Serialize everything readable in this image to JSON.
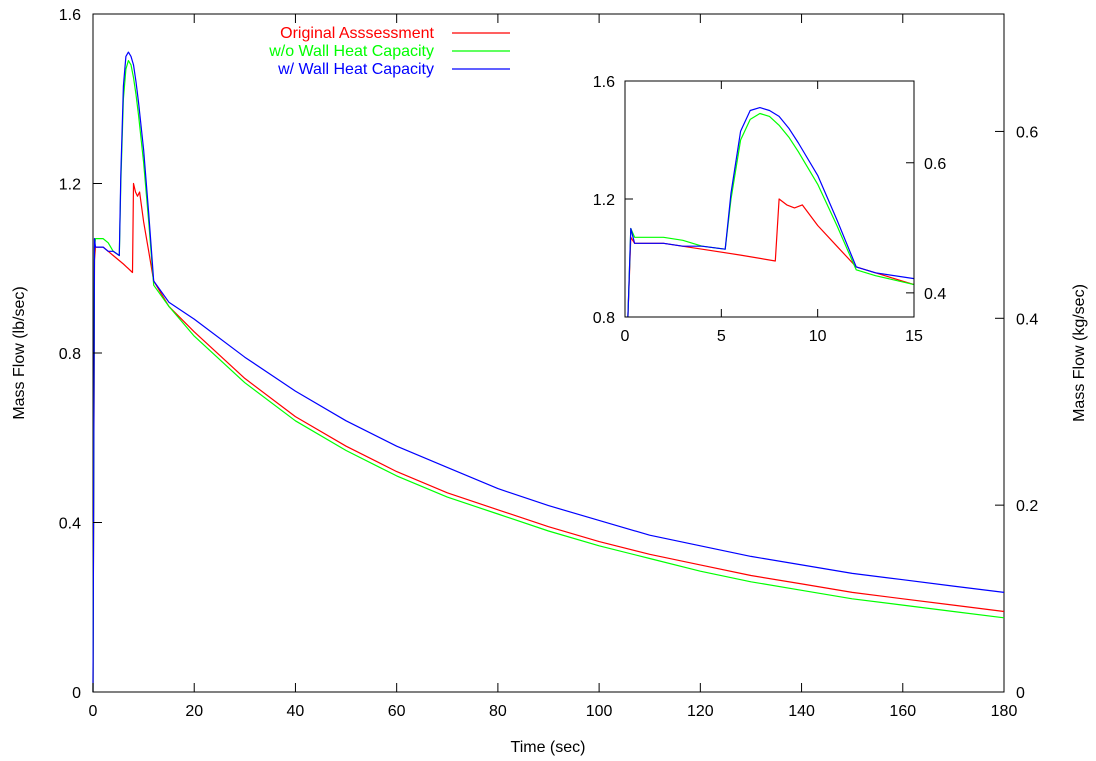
{
  "chart_data": [
    {
      "type": "line",
      "title": "",
      "xlabel": "Time (sec)",
      "ylabel": "Mass Flow (lb/sec)",
      "y2label": "Mass Flow (kg/sec)",
      "xlim": [
        0,
        180
      ],
      "ylim": [
        0,
        1.6
      ],
      "y2lim": [
        0,
        0.7257
      ],
      "xticks": [
        0,
        20,
        40,
        60,
        80,
        100,
        120,
        140,
        160,
        180
      ],
      "yticks": [
        0,
        0.4,
        0.8,
        1.2,
        1.6
      ],
      "y2ticks": [
        0,
        0.2,
        0.4,
        0.6
      ],
      "grid": false,
      "legend": "top-left",
      "series": [
        {
          "name": "Original Asssessment",
          "color": "#ff0000",
          "x": [
            0,
            0.3,
            0.5,
            2,
            4,
            6,
            7.8,
            8,
            8.4,
            8.8,
            9.2,
            10,
            11,
            12,
            15,
            20,
            30,
            40,
            50,
            60,
            70,
            80,
            90,
            100,
            110,
            120,
            130,
            140,
            150,
            160,
            170,
            180
          ],
          "y": [
            0,
            1.02,
            1.05,
            1.05,
            1.03,
            1.01,
            0.99,
            1.2,
            1.18,
            1.17,
            1.18,
            1.11,
            1.04,
            0.97,
            0.91,
            0.85,
            0.74,
            0.65,
            0.58,
            0.52,
            0.47,
            0.43,
            0.39,
            0.355,
            0.325,
            0.3,
            0.275,
            0.255,
            0.235,
            0.22,
            0.205,
            0.19
          ]
        },
        {
          "name": "w/o Wall Heat Capacity",
          "color": "#00ff00",
          "x": [
            0,
            0.3,
            0.5,
            2,
            3,
            4,
            5.2,
            5.5,
            6,
            6.5,
            7,
            7.5,
            8,
            8.5,
            9,
            10,
            11,
            12,
            15,
            20,
            30,
            40,
            50,
            60,
            70,
            80,
            90,
            100,
            110,
            120,
            130,
            140,
            150,
            160,
            170,
            180
          ],
          "y": [
            0,
            1.05,
            1.07,
            1.07,
            1.06,
            1.04,
            1.03,
            1.2,
            1.4,
            1.47,
            1.49,
            1.48,
            1.45,
            1.41,
            1.36,
            1.25,
            1.11,
            0.96,
            0.91,
            0.84,
            0.73,
            0.64,
            0.57,
            0.51,
            0.46,
            0.42,
            0.38,
            0.345,
            0.315,
            0.285,
            0.26,
            0.24,
            0.22,
            0.205,
            0.19,
            0.175
          ]
        },
        {
          "name": "w/ Wall Heat Capacity",
          "color": "#0000ff",
          "x": [
            0,
            0.3,
            0.5,
            2,
            3,
            4,
            5.2,
            5.5,
            6,
            6.5,
            7,
            7.5,
            8,
            8.5,
            9,
            10,
            11,
            12,
            15,
            20,
            30,
            40,
            50,
            60,
            70,
            80,
            90,
            100,
            110,
            120,
            130,
            140,
            150,
            160,
            170,
            180
          ],
          "y": [
            0,
            1.07,
            1.05,
            1.05,
            1.04,
            1.04,
            1.03,
            1.22,
            1.43,
            1.5,
            1.51,
            1.5,
            1.48,
            1.44,
            1.39,
            1.28,
            1.13,
            0.97,
            0.92,
            0.88,
            0.79,
            0.71,
            0.64,
            0.58,
            0.53,
            0.48,
            0.44,
            0.405,
            0.37,
            0.345,
            0.32,
            0.3,
            0.28,
            0.265,
            0.25,
            0.235
          ]
        }
      ]
    },
    {
      "type": "line",
      "title": "",
      "xlim": [
        0,
        15
      ],
      "ylim": [
        0.8,
        1.6
      ],
      "y2lim": [
        0.3629,
        0.7257
      ],
      "xticks": [
        0,
        5,
        10,
        15
      ],
      "yticks": [
        0.8,
        1.2,
        1.6
      ],
      "y2ticks": [
        0.4,
        0.6
      ],
      "grid": false,
      "series": [
        {
          "color": "#ff0000",
          "x": [
            0.15,
            0.3,
            0.5,
            2,
            4,
            6,
            7.8,
            8,
            8.4,
            8.8,
            9.2,
            10,
            11,
            12,
            15
          ],
          "y": [
            0.8,
            1.07,
            1.05,
            1.05,
            1.03,
            1.01,
            0.99,
            1.2,
            1.18,
            1.17,
            1.18,
            1.11,
            1.04,
            0.97,
            0.91
          ]
        },
        {
          "color": "#00ff00",
          "x": [
            0.15,
            0.3,
            0.5,
            2,
            3,
            4,
            5.2,
            5.5,
            6,
            6.5,
            7,
            7.5,
            8,
            8.5,
            9,
            10,
            11,
            12,
            13,
            15
          ],
          "y": [
            0.8,
            1.1,
            1.07,
            1.07,
            1.06,
            1.04,
            1.03,
            1.2,
            1.4,
            1.47,
            1.49,
            1.48,
            1.45,
            1.41,
            1.36,
            1.25,
            1.11,
            0.96,
            0.94,
            0.91
          ]
        },
        {
          "color": "#0000ff",
          "x": [
            0.15,
            0.3,
            0.5,
            2,
            3,
            4,
            5.2,
            5.5,
            6,
            6.5,
            7,
            7.5,
            8,
            8.5,
            9,
            10,
            11,
            12,
            13,
            15
          ],
          "y": [
            0.8,
            1.1,
            1.05,
            1.05,
            1.04,
            1.04,
            1.03,
            1.22,
            1.43,
            1.5,
            1.51,
            1.5,
            1.48,
            1.44,
            1.39,
            1.28,
            1.13,
            0.97,
            0.95,
            0.93
          ]
        }
      ]
    }
  ]
}
